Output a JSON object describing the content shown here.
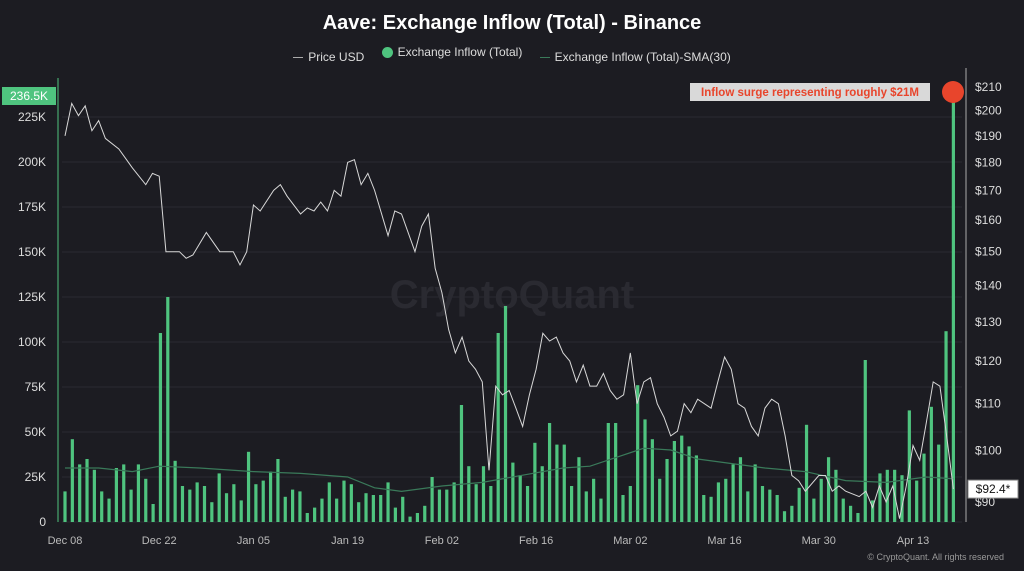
{
  "chart_data": {
    "type": "bar",
    "title": "Aave: Exchange Inflow (Total) - Binance",
    "legend": [
      {
        "name": "Price USD",
        "color": "#cccccc"
      },
      {
        "name": "Exchange Inflow (Total)",
        "color": "#4fc47f"
      },
      {
        "name": "Exchange Inflow (Total)-SMA(30)",
        "color": "#3a7a5a"
      }
    ],
    "legend_placement": "top-center",
    "y_left": {
      "ticks": [
        0,
        25,
        50,
        75,
        100,
        125,
        150,
        175,
        200,
        225
      ],
      "tick_labels": [
        "0",
        "25K",
        "50K",
        "75K",
        "100K",
        "125K",
        "150K",
        "175K",
        "200K",
        "225K"
      ],
      "max_label": "236.5K",
      "unit": "K"
    },
    "y_right": {
      "scale": "log",
      "ticks": [
        90,
        100,
        110,
        120,
        130,
        140,
        150,
        160,
        170,
        180,
        190,
        200,
        210
      ],
      "tick_labels": [
        "$90",
        "$100",
        "$110",
        "$120",
        "$130",
        "$140",
        "$150",
        "$160",
        "$170",
        "$180",
        "$190",
        "$200",
        "$210"
      ],
      "current_label": "$92.4*"
    },
    "x": {
      "tick_days": [
        0,
        14,
        28,
        42,
        56,
        70,
        84,
        98,
        112,
        126
      ],
      "tick_labels": [
        "Dec 08",
        "Dec 22",
        "Jan 05",
        "Jan 19",
        "Feb 02",
        "Feb 16",
        "Mar 02",
        "Mar 16",
        "Mar 30",
        "Apr 13"
      ],
      "last_day": 132
    },
    "inflow_k": [
      17,
      46,
      32,
      35,
      29,
      17,
      13,
      30,
      32,
      18,
      32,
      24,
      10,
      105,
      125,
      34,
      20,
      18,
      22,
      20,
      11,
      27,
      16,
      21,
      12,
      39,
      21,
      23,
      28,
      35,
      14,
      18,
      17,
      5,
      8,
      13,
      22,
      13,
      23,
      21,
      11,
      16,
      15,
      15,
      22,
      8,
      14,
      3,
      5,
      9,
      25,
      18,
      18,
      22,
      65,
      31,
      21,
      31,
      20,
      105,
      120,
      33,
      26,
      20,
      44,
      31,
      55,
      43,
      43,
      20,
      36,
      17,
      24,
      13,
      55,
      55,
      15,
      20,
      76,
      57,
      46,
      24,
      35,
      45,
      48,
      42,
      37,
      15,
      14,
      22,
      24,
      32,
      36,
      17,
      32,
      20,
      18,
      15,
      6,
      9,
      19,
      54,
      13,
      24,
      36,
      29,
      13,
      9,
      5,
      90,
      12,
      27,
      29,
      29,
      26,
      62,
      23,
      38,
      64,
      43,
      106,
      236.5
    ],
    "price": [
      [
        0,
        190
      ],
      [
        1,
        203
      ],
      [
        2,
        198
      ],
      [
        3,
        202
      ],
      [
        4,
        192
      ],
      [
        5,
        196
      ],
      [
        6,
        189
      ],
      [
        8,
        185
      ],
      [
        10,
        178
      ],
      [
        12,
        172
      ],
      [
        13,
        176
      ],
      [
        14,
        175
      ],
      [
        15,
        150
      ],
      [
        17,
        150
      ],
      [
        18,
        148
      ],
      [
        19,
        149
      ],
      [
        21,
        156
      ],
      [
        23,
        150
      ],
      [
        25,
        150
      ],
      [
        26,
        146
      ],
      [
        27,
        150
      ],
      [
        28,
        165
      ],
      [
        29,
        163
      ],
      [
        31,
        170
      ],
      [
        32,
        172
      ],
      [
        33,
        168
      ],
      [
        35,
        162
      ],
      [
        36,
        164
      ],
      [
        37,
        163
      ],
      [
        38,
        166
      ],
      [
        39,
        163
      ],
      [
        40,
        170
      ],
      [
        41,
        168
      ],
      [
        42,
        180
      ],
      [
        43,
        181
      ],
      [
        44,
        172
      ],
      [
        45,
        176
      ],
      [
        46,
        170
      ],
      [
        48,
        155
      ],
      [
        49,
        163
      ],
      [
        50,
        162
      ],
      [
        52,
        150
      ],
      [
        53,
        158
      ],
      [
        54,
        162
      ],
      [
        55,
        145
      ],
      [
        56,
        138
      ],
      [
        57,
        128
      ],
      [
        58,
        122
      ],
      [
        59,
        126
      ],
      [
        60,
        120
      ],
      [
        61,
        118
      ],
      [
        62,
        115
      ],
      [
        63,
        96
      ],
      [
        64,
        114
      ],
      [
        65,
        112
      ],
      [
        66,
        113
      ],
      [
        67,
        109
      ],
      [
        68,
        105
      ],
      [
        69,
        112
      ],
      [
        70,
        118
      ],
      [
        71,
        127
      ],
      [
        72,
        125
      ],
      [
        73,
        126
      ],
      [
        74,
        122
      ],
      [
        75,
        120
      ],
      [
        76,
        115
      ],
      [
        77,
        119
      ],
      [
        78,
        114
      ],
      [
        79,
        114
      ],
      [
        80,
        117
      ],
      [
        81,
        113
      ],
      [
        82,
        111
      ],
      [
        83,
        112
      ],
      [
        84,
        122
      ],
      [
        85,
        110
      ],
      [
        86,
        115
      ],
      [
        87,
        116
      ],
      [
        88,
        110
      ],
      [
        89,
        107
      ],
      [
        90,
        103
      ],
      [
        91,
        104
      ],
      [
        92,
        110
      ],
      [
        93,
        108
      ],
      [
        94,
        111
      ],
      [
        95,
        110
      ],
      [
        96,
        109
      ],
      [
        97,
        115
      ],
      [
        98,
        121
      ],
      [
        99,
        118
      ],
      [
        100,
        110
      ],
      [
        101,
        109
      ],
      [
        102,
        105
      ],
      [
        103,
        103
      ],
      [
        104,
        109
      ],
      [
        105,
        111
      ],
      [
        106,
        110
      ],
      [
        107,
        103
      ],
      [
        108,
        95
      ],
      [
        109,
        94
      ],
      [
        110,
        92
      ],
      [
        112,
        95
      ],
      [
        113,
        95
      ],
      [
        114,
        92
      ],
      [
        115,
        93
      ],
      [
        116,
        92
      ],
      [
        118,
        91
      ],
      [
        119,
        92
      ],
      [
        120,
        89
      ],
      [
        121,
        93
      ],
      [
        122,
        90
      ],
      [
        123,
        93
      ],
      [
        124,
        87
      ],
      [
        125,
        93
      ],
      [
        126,
        101
      ],
      [
        127,
        98
      ],
      [
        128,
        106
      ],
      [
        129,
        115
      ],
      [
        130,
        114
      ],
      [
        131,
        103
      ],
      [
        132,
        92.4
      ]
    ],
    "sma_k": [
      [
        0,
        30
      ],
      [
        5,
        30
      ],
      [
        10,
        28
      ],
      [
        14,
        31
      ],
      [
        20,
        30
      ],
      [
        28,
        28
      ],
      [
        35,
        27
      ],
      [
        42,
        25
      ],
      [
        46,
        19
      ],
      [
        50,
        17
      ],
      [
        56,
        20
      ],
      [
        62,
        22
      ],
      [
        68,
        26
      ],
      [
        74,
        30
      ],
      [
        78,
        31
      ],
      [
        82,
        36
      ],
      [
        86,
        41
      ],
      [
        90,
        40
      ],
      [
        94,
        35
      ],
      [
        98,
        33
      ],
      [
        104,
        30
      ],
      [
        110,
        28
      ],
      [
        116,
        23
      ],
      [
        122,
        22
      ],
      [
        128,
        25
      ],
      [
        132,
        24
      ]
    ],
    "annotation": {
      "text": "Inflow surge representing roughly $21M",
      "color": "#e8452c"
    }
  },
  "copyright": "© CryptoQuant. All rights reserved",
  "watermark": "CryptoQuant"
}
